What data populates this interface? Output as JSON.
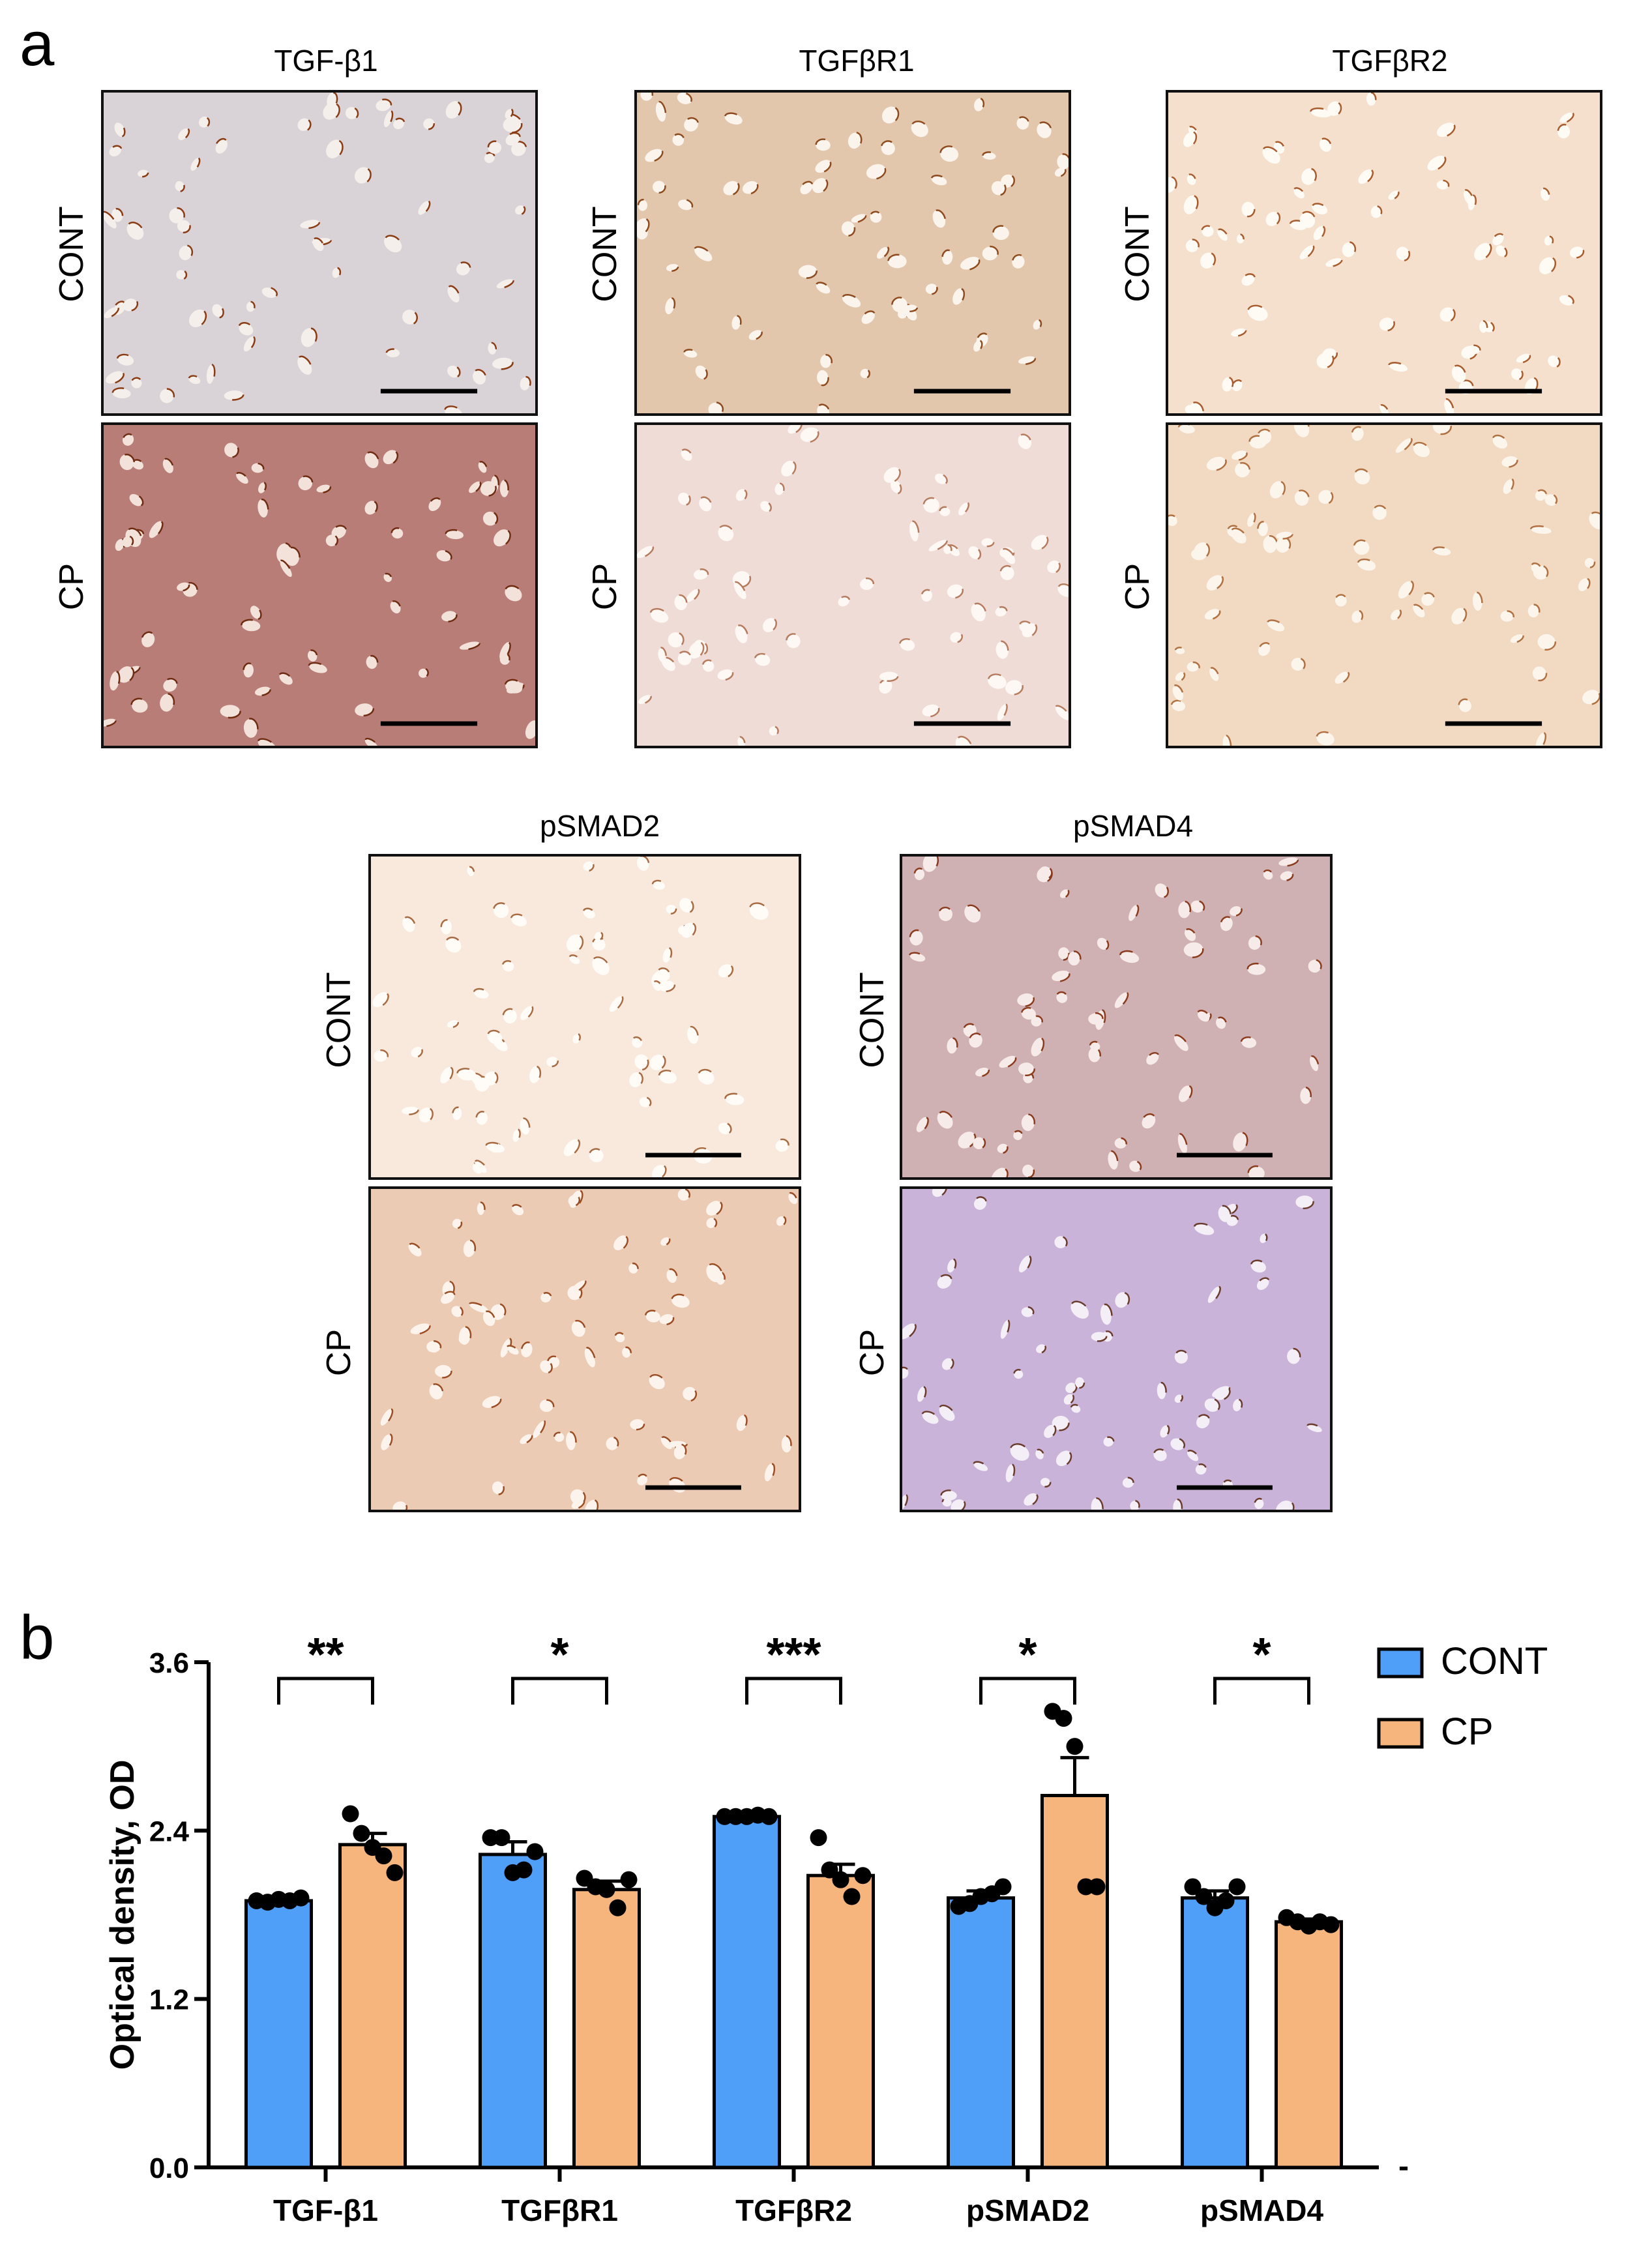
{
  "panel_a": {
    "label": "a",
    "top_columns": [
      "TGF-β1",
      "TGFβR1",
      "TGFβR2"
    ],
    "bottom_columns": [
      "pSMAD2",
      "pSMAD4"
    ],
    "rows": [
      "CONT",
      "CP"
    ],
    "micrographs": [
      {
        "column": "TGF-β1",
        "row": "CONT",
        "bg": "#d9d3d8",
        "cell": "#f4efeb",
        "stain": "#8a3b12"
      },
      {
        "column": "TGF-β1",
        "row": "CP",
        "bg": "#b97d78",
        "cell": "#f2e2da",
        "stain": "#6e2b10"
      },
      {
        "column": "TGFβR1",
        "row": "CONT",
        "bg": "#e2c7ad",
        "cell": "#fbf4ec",
        "stain": "#8e4a1c"
      },
      {
        "column": "TGFβR1",
        "row": "CP",
        "bg": "#f0dcd6",
        "cell": "#fdf8f4",
        "stain": "#b67a5c"
      },
      {
        "column": "TGFβR2",
        "row": "CONT",
        "bg": "#f5e0cd",
        "cell": "#fefaf4",
        "stain": "#a85c2c"
      },
      {
        "column": "TGFβR2",
        "row": "CP",
        "bg": "#f1d9c2",
        "cell": "#fcf5ec",
        "stain": "#b07040"
      },
      {
        "column": "pSMAD2",
        "row": "CONT",
        "bg": "#f8e9dc",
        "cell": "#fffbf6",
        "stain": "#a86a40"
      },
      {
        "column": "pSMAD2",
        "row": "CP",
        "bg": "#eccbb4",
        "cell": "#fcf4ec",
        "stain": "#9a4c22"
      },
      {
        "column": "pSMAD4",
        "row": "CONT",
        "bg": "#cfb1b4",
        "cell": "#f6ebe8",
        "stain": "#8a3a1a"
      },
      {
        "column": "pSMAD4",
        "row": "CP",
        "bg": "#c9b3d8",
        "cell": "#f4eef7",
        "stain": "#6a3a2a"
      }
    ]
  },
  "panel_b": {
    "label": "b"
  },
  "chart_data": {
    "type": "bar",
    "ylabel": "Optical density, OD",
    "ylim": [
      0,
      3.6
    ],
    "yticks": [
      "0.0",
      "1.2",
      "2.4",
      "3.6"
    ],
    "categories": [
      "TGF-β1",
      "TGFβR1",
      "TGFβR2",
      "pSMAD2",
      "pSMAD4"
    ],
    "series": [
      {
        "name": "CONT",
        "color": "#4f9ef8",
        "values": [
          1.9,
          2.23,
          2.5,
          1.92,
          1.92
        ],
        "sem": [
          0.02,
          0.09,
          0.01,
          0.05,
          0.05
        ],
        "points": [
          [
            1.9,
            1.89,
            1.91,
            1.9,
            1.92
          ],
          [
            2.35,
            2.35,
            2.1,
            2.12,
            2.25
          ],
          [
            2.5,
            2.5,
            2.5,
            2.51,
            2.5
          ],
          [
            1.86,
            1.88,
            1.93,
            1.95,
            2.0
          ],
          [
            2.0,
            1.93,
            1.85,
            1.9,
            2.0
          ]
        ]
      },
      {
        "name": "CP",
        "color": "#f5b57c",
        "values": [
          2.3,
          1.98,
          2.08,
          2.65,
          1.75
        ],
        "sem": [
          0.08,
          0.06,
          0.08,
          0.27,
          0.02
        ],
        "points": [
          [
            2.52,
            2.38,
            2.28,
            2.22,
            2.1
          ],
          [
            2.06,
            2.0,
            1.98,
            1.85,
            2.05
          ],
          [
            2.35,
            2.12,
            2.05,
            1.93,
            2.08
          ],
          [
            3.25,
            3.2,
            3.0,
            2.0,
            2.0
          ],
          [
            1.78,
            1.75,
            1.72,
            1.75,
            1.73
          ]
        ]
      }
    ],
    "significance": [
      "**",
      "*",
      "***",
      "*",
      "*"
    ],
    "legend": {
      "position": "top-right",
      "entries": [
        "CONT",
        "CP"
      ]
    },
    "extra_mark": "-"
  }
}
